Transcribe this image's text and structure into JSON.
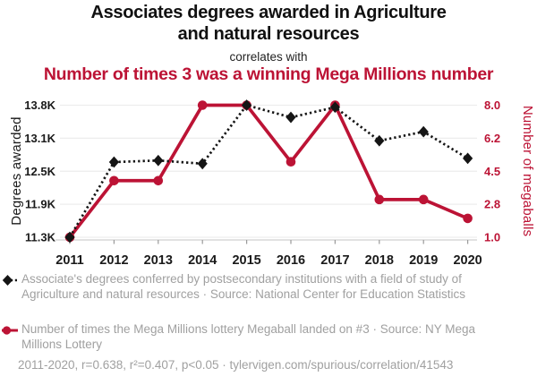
{
  "header": {
    "title_lines": [
      "Associates degrees awarded in Agriculture",
      "and natural resources"
    ],
    "connector": "correlates with",
    "subtitle": "Number of times 3 was a winning Mega Millions number"
  },
  "colors": {
    "red": "#bc1335",
    "black": "#151515",
    "title_black": "#111111",
    "gray_text": "#a0a0a0",
    "grid": "#ededed",
    "axis_line": "#d0d0d0",
    "tick_mark": "#9a9a9a",
    "tick_text_black": "#1a1a1a"
  },
  "chart_data": {
    "type": "line",
    "title": "Associates degrees awarded in Agriculture and natural resources correlates with Number of times 3 was a winning Mega Millions number",
    "x": [
      "2011",
      "2012",
      "2013",
      "2014",
      "2015",
      "2016",
      "2017",
      "2018",
      "2019",
      "2020"
    ],
    "series": [
      {
        "name": "Degrees awarded",
        "axis": "left",
        "color_key": "black",
        "style": "dotted",
        "marker": "diamond",
        "draw_order": 2,
        "values": [
          11318,
          12730,
          12760,
          12700,
          13798,
          13570,
          13760,
          13130,
          13300,
          12800
        ]
      },
      {
        "name": "Number of megaballs",
        "axis": "right",
        "color_key": "red",
        "style": "solid",
        "marker": "circle",
        "draw_order": 1,
        "values": [
          1,
          4,
          4,
          8,
          8,
          5,
          8,
          3,
          3,
          2
        ]
      }
    ],
    "left_axis": {
      "label": "Degrees awarded",
      "ticks": [
        "13.8K",
        "13.1K",
        "12.5K",
        "11.9K",
        "11.3K"
      ],
      "min": 11318,
      "max": 13798
    },
    "right_axis": {
      "label": "Number of megaballs",
      "ticks": [
        "8.0",
        "6.2",
        "4.5",
        "2.8",
        "1.0"
      ],
      "min": 1,
      "max": 8
    },
    "grid": true,
    "legend_position": "bottom"
  },
  "legend": [
    {
      "label": "Associate's degrees conferred by postsecondary institutions with a field of study of Agriculture and natural resources · Source: National Center for Education Statistics"
    },
    {
      "label": "Number of times the Mega Millions lottery Megaball landed on #3 · Source: NY Mega Millions Lottery"
    }
  ],
  "footer": "2011-2020, r=0.638, r²=0.407, p<0.05 · tylervigen.com/spurious/correlation/41543"
}
